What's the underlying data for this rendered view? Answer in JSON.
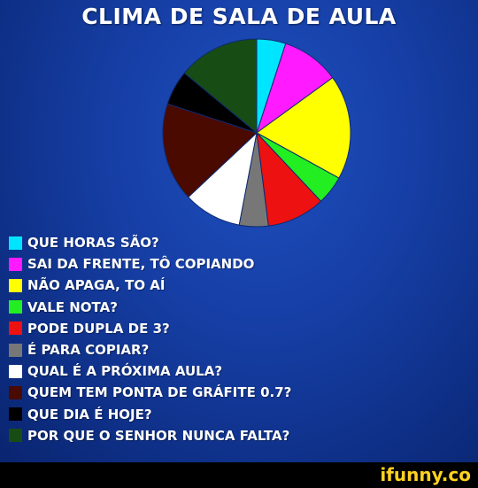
{
  "chart_data": {
    "type": "pie",
    "title": "CLIMA DE SALA DE AULA",
    "legend_position": "bottom-left",
    "slices": [
      {
        "label": "QUE HORAS SÃO?",
        "value": 5,
        "color": "#00e5ff"
      },
      {
        "label": "SAI DA FRENTE, TÔ COPIANDO",
        "value": 10,
        "color": "#ff1aff"
      },
      {
        "label": "NÃO APAGA, TO AÍ",
        "value": 18,
        "color": "#ffff00"
      },
      {
        "label": "VALE NOTA?",
        "value": 5,
        "color": "#22ee22"
      },
      {
        "label": "PODE DUPLA DE 3?",
        "value": 10,
        "color": "#ee1111"
      },
      {
        "label": "É PARA COPIAR?",
        "value": 5,
        "color": "#777777"
      },
      {
        "label": "QUAL É A PRÓXIMA AULA?",
        "value": 10,
        "color": "#ffffff"
      },
      {
        "label": "QUEM TEM PONTA DE GRÁFITE 0.7?",
        "value": 17,
        "color": "#4a0a00"
      },
      {
        "label": "QUE DIA É HOJE?",
        "value": 6,
        "color": "#000000"
      },
      {
        "label": "POR QUE O SENHOR NUNCA FALTA?",
        "value": 14,
        "color": "#174d14"
      }
    ]
  },
  "watermark": "ifunny.co"
}
